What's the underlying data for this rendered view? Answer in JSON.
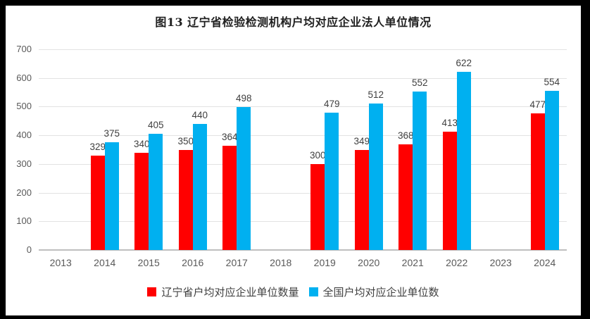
{
  "title": "图13 辽宁省检验检测机构户均对应企业法人单位情况",
  "chart_data": {
    "type": "bar",
    "title": "图13 辽宁省检验检测机构户均对应企业法人单位情况",
    "categories": [
      "2013",
      "2014",
      "2015",
      "2016",
      "2017",
      "2018",
      "2019",
      "2020",
      "2021",
      "2022",
      "2023",
      "2024"
    ],
    "series": [
      {
        "name": "辽宁省户均对应企业单位数量",
        "color": "#ff0000",
        "values": [
          null,
          329,
          340,
          350,
          364,
          null,
          300,
          349,
          368,
          413,
          null,
          477
        ]
      },
      {
        "name": "全国户均对应企业单位数",
        "color": "#00b0f0",
        "values": [
          null,
          375,
          405,
          440,
          498,
          null,
          479,
          512,
          552,
          622,
          null,
          554
        ]
      }
    ],
    "xlabel": "",
    "ylabel": "",
    "ylim": [
      0,
      700
    ],
    "ytick_step": 100,
    "yticks": [
      "0",
      "100",
      "200",
      "300",
      "400",
      "500",
      "600",
      "700"
    ],
    "grid": true,
    "data_labels": true,
    "legend_position": "bottom"
  },
  "style_colors": {
    "frame_border": "#000000",
    "background": "#ffffff",
    "gridline": "#e2e2e2",
    "axis_line": "#bfbfbf",
    "tick_label": "#595959",
    "data_label": "#3f3f3f",
    "title_text": "#1f1f1f"
  }
}
